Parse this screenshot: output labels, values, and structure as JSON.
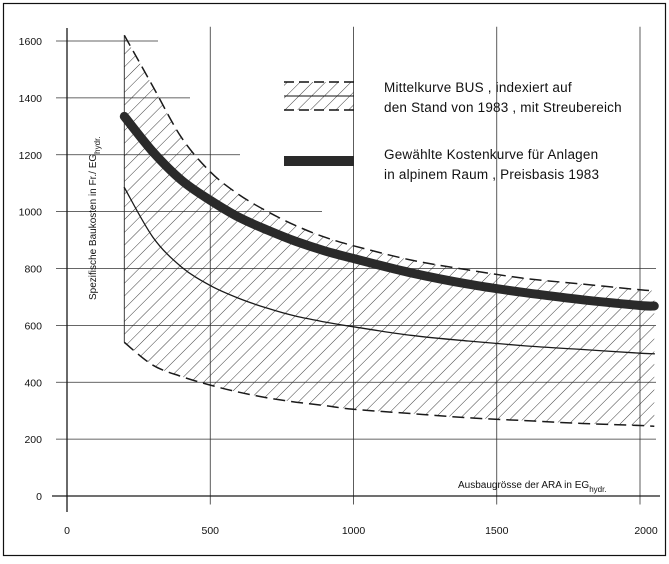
{
  "chart_data": {
    "type": "line",
    "title": "",
    "xlabel": "Ausbaugrösse der  ARA  in EG",
    "xlabel_sub": "hydr.",
    "ylabel": "Spezifische Baukosten  in  Fr./ EG",
    "ylabel_sub": "hydr.",
    "xlim": [
      0,
      2100
    ],
    "ylim": [
      0,
      1650
    ],
    "x_ticks": [
      0,
      500,
      1000,
      1500,
      2000
    ],
    "y_ticks": [
      0,
      200,
      400,
      600,
      800,
      1000,
      1200,
      1400,
      1600
    ],
    "grid": true,
    "legend_position": "top-right",
    "legend": [
      {
        "lines": [
          "Mittelkurve BUS , indexiert  auf",
          "den Stand von 1983 , mit Streubereich"
        ],
        "swatch": "hatched-band"
      },
      {
        "lines": [
          "Gewählte  Kostenkurve  für  Anlagen",
          "in alpinem Raum , Preisbasis  1983"
        ],
        "swatch": "thick-line"
      }
    ],
    "x": [
      200,
      300,
      400,
      500,
      600,
      700,
      800,
      900,
      1000,
      1200,
      1400,
      1600,
      1800,
      2000,
      2050
    ],
    "series": [
      {
        "name": "Gewählte Kostenkurve für Anlagen in alpinem Raum, Preisbasis 1983",
        "style": "thick",
        "values": [
          1335,
          1210,
          1110,
          1040,
          980,
          935,
          895,
          862,
          835,
          785,
          745,
          715,
          690,
          670,
          668
        ]
      },
      {
        "name": "Mittelkurve BUS, indexiert auf den Stand von 1983",
        "style": "thin",
        "values": [
          1085,
          910,
          805,
          740,
          695,
          660,
          632,
          612,
          595,
          565,
          545,
          528,
          515,
          502,
          500
        ]
      },
      {
        "name": "Streubereich (oben)",
        "style": "dashed",
        "values": [
          1620,
          1440,
          1260,
          1140,
          1060,
          1000,
          950,
          910,
          880,
          830,
          795,
          765,
          745,
          725,
          722
        ]
      },
      {
        "name": "Streubereich (unten)",
        "style": "dashed",
        "values": [
          540,
          460,
          420,
          390,
          365,
          345,
          330,
          318,
          305,
          290,
          275,
          265,
          255,
          248,
          245
        ]
      }
    ],
    "colors": {
      "ink": "#1a1a1a",
      "background": "#ffffff",
      "grid": "#333333"
    }
  }
}
